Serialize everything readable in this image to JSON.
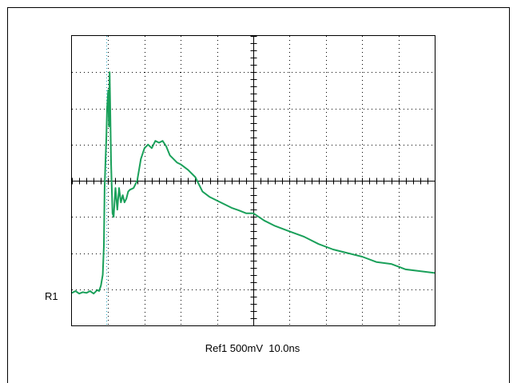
{
  "chart_data": {
    "type": "line",
    "title": "",
    "xlabel": "",
    "ylabel": "",
    "grid": true,
    "divisions": {
      "x": 10,
      "y": 8
    },
    "xlim": [
      0,
      10
    ],
    "ylim": [
      -4,
      4
    ],
    "reference": {
      "label": "R1",
      "caption": "Ref1 500mV  10.0ns",
      "volts_per_div": "500mV",
      "time_per_div": "10.0ns"
    },
    "colors": {
      "trace": "#1aa05a",
      "trigger_marker": "#2aa8c0",
      "grid": "#000000"
    },
    "series": [
      {
        "x": [
          0.0,
          0.1,
          0.2,
          0.3,
          0.4,
          0.5,
          0.6,
          0.7,
          0.75,
          0.8,
          0.85,
          0.88,
          0.9,
          0.92,
          0.95,
          0.97,
          1.0,
          1.02,
          1.04,
          1.06,
          1.08,
          1.1,
          1.12,
          1.15,
          1.18,
          1.2,
          1.25,
          1.3,
          1.35,
          1.4,
          1.45,
          1.5,
          1.55,
          1.6,
          1.7,
          1.8,
          1.9,
          2.0,
          2.1,
          2.2,
          2.3,
          2.4,
          2.5,
          2.6,
          2.7,
          2.8,
          2.9,
          3.0,
          3.2,
          3.4,
          3.6,
          3.8,
          4.0,
          4.2,
          4.4,
          4.6,
          4.8,
          5.0,
          5.3,
          5.6,
          6.0,
          6.4,
          6.8,
          7.2,
          7.6,
          8.0,
          8.4,
          8.8,
          9.2,
          9.6,
          10.0
        ],
        "y": [
          -3.1,
          -3.05,
          -3.12,
          -3.08,
          -3.1,
          -3.05,
          -3.12,
          -3.02,
          -3.05,
          -2.9,
          -2.6,
          -1.8,
          -0.2,
          0.4,
          1.2,
          2.0,
          2.5,
          1.5,
          3.0,
          1.8,
          0.5,
          -0.2,
          -0.9,
          -1.0,
          -0.5,
          -0.2,
          -0.8,
          -0.2,
          -0.6,
          -0.4,
          -0.6,
          -0.5,
          -0.3,
          -0.25,
          -0.2,
          0.0,
          0.6,
          0.9,
          1.0,
          0.9,
          1.1,
          1.05,
          1.1,
          0.95,
          0.7,
          0.6,
          0.5,
          0.45,
          0.3,
          0.1,
          -0.3,
          -0.45,
          -0.55,
          -0.65,
          -0.75,
          -0.82,
          -0.9,
          -0.9,
          -1.1,
          -1.25,
          -1.4,
          -1.55,
          -1.75,
          -1.9,
          -2.0,
          -2.1,
          -2.25,
          -2.3,
          -2.45,
          -2.5,
          -2.55
        ]
      }
    ],
    "trigger_x": 0.95
  }
}
